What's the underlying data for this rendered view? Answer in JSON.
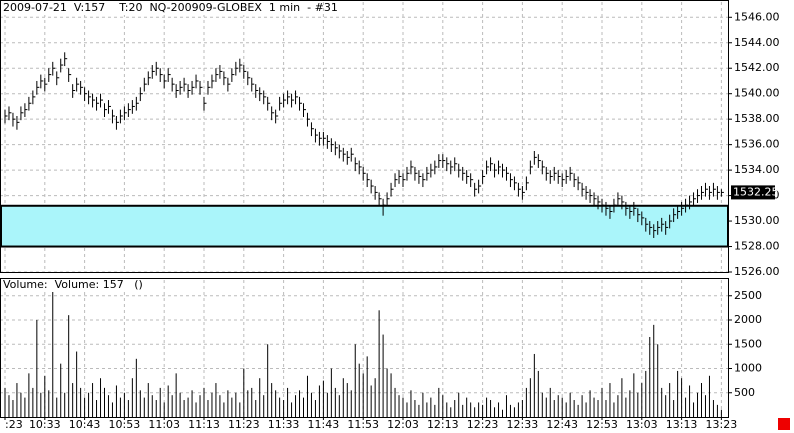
{
  "chart_data": [
    {
      "type": "ohlc",
      "title": "2009-07-21  V:157    T:20  NQ-200909-GLOBEX  1 min  - #31",
      "color": "#000000",
      "high": [
        1538.75,
        1539,
        1538.5,
        1538.25,
        1539,
        1539.25,
        1539.75,
        1540.25,
        1541,
        1541.5,
        1541.25,
        1542,
        1542.5,
        1541.75,
        1542.75,
        1543.25,
        1542,
        1540.75,
        1541.25,
        1541,
        1540.5,
        1540.25,
        1540,
        1539.75,
        1540,
        1539.25,
        1539.5,
        1538.75,
        1538.25,
        1538.75,
        1539,
        1539.25,
        1539.5,
        1539.75,
        1540.5,
        1541.25,
        1541.75,
        1542.25,
        1542.5,
        1542,
        1541.5,
        1542,
        1541.25,
        1540.75,
        1541,
        1541.25,
        1540.75,
        1541,
        1541.5,
        1541,
        1539.75,
        1541,
        1541.5,
        1542,
        1542.25,
        1541.75,
        1541.25,
        1542,
        1542.5,
        1542.75,
        1542.25,
        1541.75,
        1541.25,
        1540.75,
        1540.5,
        1540.25,
        1539.75,
        1539,
        1538.75,
        1539.75,
        1540,
        1540.25,
        1540,
        1540.25,
        1539.75,
        1539.25,
        1538.5,
        1537.75,
        1537.25,
        1537,
        1537,
        1536.75,
        1536.5,
        1536.25,
        1536,
        1535.75,
        1535.5,
        1535.75,
        1535,
        1534.75,
        1534.25,
        1533.75,
        1533.25,
        1532.75,
        1532.25,
        1531.75,
        1532.25,
        1533,
        1533.75,
        1534,
        1533.75,
        1534.25,
        1534.75,
        1534.25,
        1534,
        1533.75,
        1534.25,
        1534.5,
        1534.75,
        1535.25,
        1535.25,
        1535,
        1534.75,
        1535,
        1534.5,
        1534.25,
        1534,
        1533.75,
        1533,
        1533.25,
        1534,
        1534.75,
        1535,
        1534.5,
        1534.75,
        1534.5,
        1534.25,
        1533.75,
        1533.5,
        1533,
        1532.75,
        1533.5,
        1534.75,
        1535.5,
        1535.25,
        1534.75,
        1534.25,
        1534,
        1534.25,
        1534,
        1533.75,
        1534,
        1534.25,
        1533.75,
        1533.5,
        1533,
        1532.75,
        1532.5,
        1532.25,
        1532,
        1531.75,
        1531.5,
        1531.25,
        1531.75,
        1532.25,
        1532,
        1531.5,
        1531.25,
        1531.5,
        1531,
        1530.75,
        1530.25,
        1530,
        1529.75,
        1530,
        1530.25,
        1530,
        1530.5,
        1531,
        1531.25,
        1531.5,
        1531.75,
        1532,
        1532.25,
        1532.5,
        1532.75,
        1533,
        1532.75,
        1533,
        1532.75,
        1532.5
      ],
      "low": [
        1537.75,
        1538,
        1537.5,
        1537.25,
        1538,
        1538.25,
        1538.75,
        1539.25,
        1540,
        1540.5,
        1540.25,
        1541,
        1541.5,
        1540.75,
        1541.75,
        1542.25,
        1541,
        1539.75,
        1540.25,
        1540,
        1539.5,
        1539.25,
        1539,
        1538.75,
        1539,
        1538.25,
        1538.5,
        1537.75,
        1537.25,
        1537.75,
        1538,
        1538.25,
        1538.5,
        1538.75,
        1539.5,
        1540.25,
        1540.75,
        1541.25,
        1541.5,
        1541,
        1540.5,
        1541,
        1540.25,
        1539.75,
        1540,
        1540.25,
        1539.75,
        1540,
        1540.5,
        1540,
        1538.75,
        1540,
        1540.5,
        1541,
        1541.25,
        1540.75,
        1540.25,
        1541,
        1541.5,
        1541.75,
        1541.25,
        1540.75,
        1540.25,
        1539.75,
        1539.5,
        1539.25,
        1538.75,
        1538,
        1537.75,
        1538.75,
        1539,
        1539.25,
        1539,
        1539.25,
        1538.75,
        1538.25,
        1537.5,
        1536.75,
        1536.25,
        1536,
        1536,
        1535.75,
        1535.5,
        1535.25,
        1535,
        1534.75,
        1534.5,
        1534.75,
        1534,
        1533.75,
        1533.25,
        1532.75,
        1532.25,
        1531.75,
        1531.25,
        1530.5,
        1531.25,
        1532,
        1532.75,
        1533,
        1532.75,
        1533.25,
        1533.75,
        1533.25,
        1533,
        1532.75,
        1533.25,
        1533.5,
        1533.75,
        1534.25,
        1534.25,
        1534,
        1533.75,
        1534,
        1533.5,
        1533.25,
        1533,
        1532.75,
        1532,
        1532.25,
        1533,
        1533.75,
        1534,
        1533.5,
        1533.75,
        1533.5,
        1533.25,
        1532.75,
        1532.5,
        1532,
        1531.75,
        1532.5,
        1533.75,
        1534.5,
        1534.25,
        1533.75,
        1533.25,
        1533,
        1533.25,
        1533,
        1532.75,
        1533,
        1533.25,
        1532.75,
        1532.5,
        1532,
        1531.75,
        1531.5,
        1531.25,
        1531,
        1530.75,
        1530.5,
        1530.25,
        1530.75,
        1531.25,
        1531,
        1530.5,
        1530.25,
        1530.5,
        1530,
        1529.75,
        1529.25,
        1529,
        1528.75,
        1529,
        1529.25,
        1529,
        1529.5,
        1530,
        1530.25,
        1530.5,
        1530.75,
        1531,
        1531.25,
        1531.5,
        1531.75,
        1532,
        1531.75,
        1532,
        1531.75,
        1532
      ],
      "close": [
        1538.25,
        1538.5,
        1538,
        1537.75,
        1538.5,
        1538.75,
        1539.25,
        1539.75,
        1540.5,
        1541,
        1540.75,
        1541.5,
        1542,
        1541.25,
        1542.25,
        1542.75,
        1541.5,
        1540.25,
        1540.75,
        1540.5,
        1540,
        1539.75,
        1539.5,
        1539.25,
        1539.5,
        1538.75,
        1539,
        1538.25,
        1537.75,
        1538.25,
        1538.5,
        1538.75,
        1539,
        1539.25,
        1540,
        1540.75,
        1541.25,
        1541.75,
        1542,
        1541.5,
        1541,
        1541.5,
        1540.75,
        1540.25,
        1540.5,
        1540.75,
        1540.25,
        1540.5,
        1541,
        1540.5,
        1539.25,
        1540.5,
        1541,
        1541.5,
        1541.75,
        1541.25,
        1540.75,
        1541.5,
        1542,
        1542.25,
        1541.75,
        1541.25,
        1540.75,
        1540.25,
        1540,
        1539.75,
        1539.25,
        1538.5,
        1538.25,
        1539.25,
        1539.5,
        1539.75,
        1539.5,
        1539.75,
        1539.25,
        1538.75,
        1538,
        1537.25,
        1536.75,
        1536.5,
        1536.5,
        1536.25,
        1536,
        1535.75,
        1535.5,
        1535.25,
        1535,
        1535.25,
        1534.5,
        1534.25,
        1533.75,
        1533.25,
        1532.75,
        1532.25,
        1531.75,
        1531.25,
        1531.75,
        1532.5,
        1533.25,
        1533.5,
        1533.25,
        1533.75,
        1534.25,
        1533.75,
        1533.5,
        1533.25,
        1533.75,
        1534,
        1534.25,
        1534.75,
        1534.75,
        1534.5,
        1534.25,
        1534.5,
        1534,
        1533.75,
        1533.5,
        1533.25,
        1532.5,
        1532.75,
        1533.5,
        1534.25,
        1534.5,
        1534,
        1534.25,
        1534,
        1533.75,
        1533.25,
        1533,
        1532.5,
        1532.25,
        1533,
        1534.25,
        1535,
        1534.75,
        1534.25,
        1533.75,
        1533.5,
        1533.75,
        1533.5,
        1533.25,
        1533.5,
        1533.75,
        1533.25,
        1533,
        1532.5,
        1532.25,
        1532,
        1531.75,
        1531.5,
        1531.25,
        1531,
        1530.75,
        1531.25,
        1531.75,
        1531.5,
        1531,
        1530.75,
        1531,
        1530.5,
        1530.25,
        1529.75,
        1529.5,
        1529.25,
        1529.5,
        1529.75,
        1529.5,
        1530,
        1530.5,
        1530.75,
        1531,
        1531.25,
        1531.5,
        1531.75,
        1532,
        1532.25,
        1532.5,
        1532.25,
        1532.5,
        1532.25,
        1532.25
      ],
      "zone": {
        "low": 1528,
        "high": 1531.2,
        "color": "#aaf5fa"
      },
      "last_price": {
        "value": 1532.25,
        "label": "1532.25"
      },
      "ylim": [
        1526,
        1547.2
      ],
      "yticks": [
        {
          "value": 1526,
          "label": "1526.00"
        },
        {
          "value": 1528,
          "label": "1528.00"
        },
        {
          "value": 1530,
          "label": "1530.00"
        },
        {
          "value": 1532,
          "label": "1532.00"
        },
        {
          "value": 1534,
          "label": "1534.00"
        },
        {
          "value": 1536,
          "label": "1536.00"
        },
        {
          "value": 1538,
          "label": "1538.00"
        },
        {
          "value": 1540,
          "label": "1540.00"
        },
        {
          "value": 1542,
          "label": "1542.00"
        },
        {
          "value": 1544,
          "label": "1544.00"
        },
        {
          "value": 1546,
          "label": "1546.00"
        }
      ],
      "grid": true
    },
    {
      "type": "bar",
      "title": "Volume:  Volume: 157   ()",
      "color": "#000000",
      "categories": [
        ":23",
        null,
        null,
        null,
        null,
        null,
        null,
        null,
        null,
        null,
        "10:33",
        null,
        null,
        null,
        null,
        null,
        null,
        null,
        null,
        null,
        "10:43",
        null,
        null,
        null,
        null,
        null,
        null,
        null,
        null,
        null,
        "10:53",
        null,
        null,
        null,
        null,
        null,
        null,
        null,
        null,
        null,
        "11:03",
        null,
        null,
        null,
        null,
        null,
        null,
        null,
        null,
        null,
        "11:13",
        null,
        null,
        null,
        null,
        null,
        null,
        null,
        null,
        null,
        "11:23",
        null,
        null,
        null,
        null,
        null,
        null,
        null,
        null,
        null,
        "11:33",
        null,
        null,
        null,
        null,
        null,
        null,
        null,
        null,
        null,
        "11:43",
        null,
        null,
        null,
        null,
        null,
        null,
        null,
        null,
        null,
        "11:53",
        null,
        null,
        null,
        null,
        null,
        null,
        null,
        null,
        null,
        "12:03",
        null,
        null,
        null,
        null,
        null,
        null,
        null,
        null,
        null,
        "12:13",
        null,
        null,
        null,
        null,
        null,
        null,
        null,
        null,
        null,
        "12:23",
        null,
        null,
        null,
        null,
        null,
        null,
        null,
        null,
        null,
        "12:33",
        null,
        null,
        null,
        null,
        null,
        null,
        null,
        null,
        null,
        "12:43",
        null,
        null,
        null,
        null,
        null,
        null,
        null,
        null,
        null,
        "12:53",
        null,
        null,
        null,
        null,
        null,
        null,
        null,
        null,
        null,
        "13:03",
        null,
        null,
        null,
        null,
        null,
        null,
        null,
        null,
        null,
        "13:13",
        null,
        null,
        null,
        null,
        null,
        null,
        null,
        null,
        null,
        "13:23"
      ],
      "values": [
        600,
        450,
        350,
        700,
        500,
        400,
        900,
        600,
        2000,
        500,
        850,
        550,
        2600,
        400,
        1100,
        500,
        2100,
        700,
        1350,
        600,
        400,
        500,
        700,
        350,
        800,
        600,
        450,
        300,
        650,
        400,
        500,
        350,
        800,
        1200,
        550,
        400,
        700,
        450,
        350,
        600,
        300,
        650,
        450,
        900,
        500,
        350,
        400,
        550,
        300,
        450,
        600,
        350,
        500,
        700,
        450,
        300,
        550,
        400,
        500,
        300,
        1000,
        550,
        600,
        350,
        800,
        450,
        1500,
        700,
        550,
        400,
        350,
        600,
        300,
        450,
        550,
        400,
        850,
        500,
        350,
        650,
        750,
        500,
        1000,
        600,
        450,
        800,
        700,
        550,
        1500,
        1100,
        900,
        1250,
        650,
        800,
        2200,
        1700,
        1000,
        900,
        600,
        450,
        400,
        300,
        550,
        350,
        250,
        500,
        300,
        400,
        250,
        600,
        450,
        300,
        200,
        350,
        500,
        250,
        400,
        300,
        200,
        300,
        250,
        400,
        350,
        200,
        300,
        150,
        450,
        250,
        200,
        300,
        350,
        600,
        800,
        1300,
        950,
        500,
        400,
        600,
        350,
        450,
        400,
        300,
        500,
        350,
        250,
        450,
        300,
        550,
        400,
        350,
        600,
        350,
        700,
        300,
        450,
        800,
        400,
        550,
        900,
        500,
        700,
        950,
        1650,
        1900,
        1500,
        600,
        450,
        700,
        350,
        950,
        800,
        400,
        650,
        300,
        500,
        700,
        450,
        850,
        350,
        250,
        150
      ],
      "ylim": [
        0,
        2825
      ],
      "yticks": [
        500,
        1000,
        1500,
        2000,
        2500
      ],
      "grid": true
    }
  ]
}
